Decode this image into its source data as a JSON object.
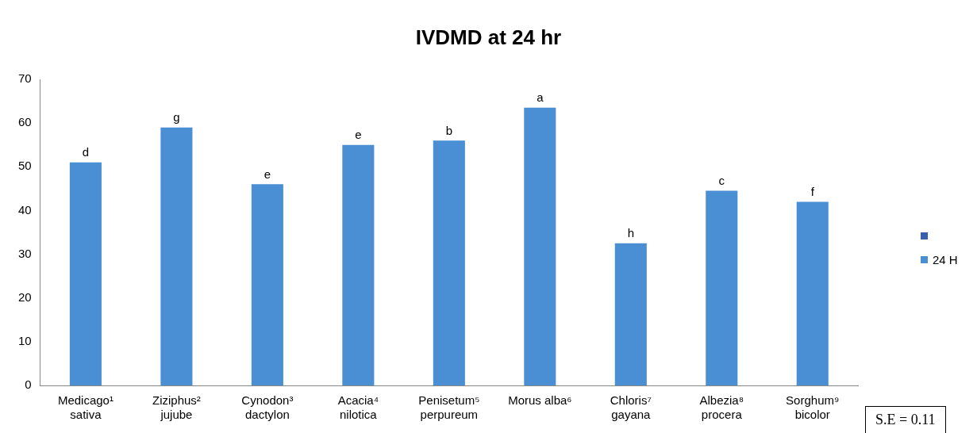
{
  "chart_data": {
    "type": "bar",
    "title": "IVDMD at 24 hr",
    "categories": [
      "Medicago¹\nsativa",
      "Ziziphus²\njujube",
      "Cynodon³\ndactylon",
      "Acacia⁴\nnilotica",
      "Penisetum⁵\nperpureum",
      "Morus alba⁶",
      "Chloris⁷\ngayana",
      "Albezia⁸\nprocera",
      "Sorghum⁹\nbicolor"
    ],
    "series": [
      {
        "name": "24 H",
        "color": "#4a8fd3",
        "values": [
          51,
          59,
          46,
          55,
          56,
          63.5,
          32.5,
          44.5,
          42
        ],
        "value_labels": [
          "d",
          "g",
          "e",
          "e",
          "b",
          "a",
          "h",
          "c",
          "f"
        ]
      }
    ],
    "ylim": [
      0,
      70
    ],
    "yticks": [
      0,
      10,
      20,
      30,
      40,
      50,
      60,
      70
    ],
    "grid": false,
    "legend": "right",
    "annotations": [
      "S.E = 0.11"
    ]
  }
}
